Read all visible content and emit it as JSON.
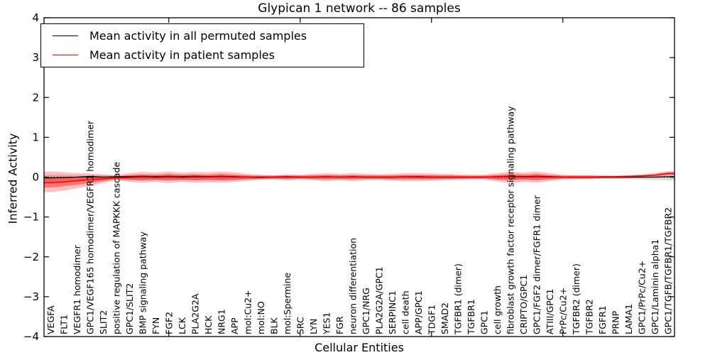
{
  "figure": {
    "background": "#ffffff"
  },
  "legend": {
    "items": [
      {
        "label": "Mean activity in all permuted samples",
        "color": "#000000"
      },
      {
        "label": "Mean activity in patient samples",
        "color": "#ff0000"
      }
    ]
  },
  "chart_data": {
    "type": "line",
    "title": "Glypican 1 network -- 86 samples",
    "xlabel": "Cellular Entities",
    "ylabel": "Inferred Activity",
    "ylim": [
      -4,
      4
    ],
    "yticks": [
      -4,
      -3,
      -2,
      -1,
      0,
      1,
      2,
      3,
      4
    ],
    "grid": false,
    "legend_position": "upper left",
    "major_tick_indices": [
      9,
      19,
      29,
      39
    ],
    "zero_line": {
      "y": 0,
      "style": "dotted",
      "color": "#000000"
    },
    "categories": [
      "VEGFA",
      "FLT1",
      "VEGFR1 homodimer",
      "GPC1/VEGF165 homodimer/VEGFR1 homodimer",
      "SLIT2",
      "positive regulation of MAPKKK cascade",
      "GPC1/SLIT2",
      "BMP signaling pathway",
      "FYN",
      "FGF2",
      "LCK",
      "PLA2G2A",
      "HCK",
      "NRG1",
      "APP",
      "mol:Cu2+",
      "mol:NO",
      "BLK",
      "mol:Spermine",
      "SRC",
      "LYN",
      "YES1",
      "FGR",
      "neuron differentiation",
      "GPC1/NRG",
      "PLA2G2A/GPC1",
      "SERPINC1",
      "cell death",
      "APP/GPC1",
      "TDGF1",
      "SMAD2",
      "TGFBR1 (dimer)",
      "TGFBR1",
      "GPC1",
      "cell growth",
      "fibroblast growth factor receptor signaling pathway",
      "CRIPTO/GPC1",
      "GPC1/FGF2 dimer/FGFR1 dimer",
      "ATIII/GPC1",
      "PrPc/Cu2+",
      "TGFBR2 (dimer)",
      "TGFBR2",
      "FGFR1",
      "PRNP",
      "LAMA1",
      "GPC1/PrPc/Cu2+",
      "GPC1/Laminin alpha1",
      "GPC1/TGFB/TGFBR1/TGFBR2"
    ],
    "series": [
      {
        "name": "Mean activity in all permuted samples",
        "color": "#000000",
        "width": 1.3,
        "values": [
          -0.02,
          -0.01,
          0.0,
          0.02,
          0.0,
          0.01,
          0.01,
          0.02,
          0.01,
          0.02,
          0.01,
          0.02,
          0.01,
          0.02,
          0.01,
          0.0,
          0.0,
          0.0,
          0.01,
          0.0,
          0.0,
          0.01,
          0.0,
          0.01,
          0.0,
          0.0,
          0.0,
          0.01,
          0.01,
          0.0,
          0.0,
          0.0,
          0.0,
          0.0,
          0.01,
          0.02,
          0.01,
          0.02,
          0.01,
          0.0,
          0.0,
          0.0,
          0.0,
          0.0,
          0.0,
          0.0,
          0.0,
          0.01
        ]
      },
      {
        "name": "Mean activity in patient samples",
        "color": "#ff0000",
        "width": 1.5,
        "values": [
          -0.14,
          -0.12,
          -0.09,
          -0.06,
          -0.04,
          -0.02,
          -0.01,
          0.0,
          -0.01,
          0.0,
          -0.01,
          0.0,
          0.0,
          0.01,
          0.0,
          0.0,
          -0.01,
          0.0,
          0.0,
          0.0,
          0.0,
          0.01,
          0.0,
          0.01,
          0.0,
          0.0,
          0.0,
          0.01,
          0.0,
          0.0,
          0.0,
          0.0,
          0.0,
          0.0,
          0.01,
          0.01,
          0.0,
          0.01,
          0.0,
          0.0,
          0.0,
          0.0,
          0.01,
          0.01,
          0.02,
          0.03,
          0.05,
          0.09
        ]
      }
    ],
    "bands": [
      {
        "name": "permuted-range",
        "color": "rgba(130,130,130,0.28)",
        "upper": [
          0.06,
          0.06,
          0.05,
          0.05,
          0.05,
          0.04,
          0.05,
          0.06,
          0.05,
          0.06,
          0.05,
          0.06,
          0.05,
          0.06,
          0.05,
          0.04,
          0.04,
          0.04,
          0.04,
          0.04,
          0.05,
          0.05,
          0.05,
          0.05,
          0.04,
          0.04,
          0.04,
          0.05,
          0.05,
          0.04,
          0.04,
          0.04,
          0.04,
          0.04,
          0.05,
          0.06,
          0.05,
          0.06,
          0.05,
          0.04,
          0.04,
          0.04,
          0.03,
          0.03,
          0.03,
          0.04,
          0.04,
          0.05
        ],
        "lower": [
          -0.12,
          -0.11,
          -0.1,
          -0.09,
          -0.08,
          -0.06,
          -0.07,
          -0.08,
          -0.07,
          -0.08,
          -0.07,
          -0.08,
          -0.07,
          -0.08,
          -0.07,
          -0.06,
          -0.05,
          -0.05,
          -0.06,
          -0.05,
          -0.06,
          -0.06,
          -0.06,
          -0.06,
          -0.05,
          -0.05,
          -0.06,
          -0.06,
          -0.06,
          -0.06,
          -0.05,
          -0.05,
          -0.05,
          -0.05,
          -0.06,
          -0.07,
          -0.06,
          -0.07,
          -0.06,
          -0.05,
          -0.05,
          -0.05,
          -0.04,
          -0.04,
          -0.05,
          -0.06,
          -0.07,
          -0.08
        ]
      },
      {
        "name": "patient-range-outer",
        "color": "rgba(255,0,0,0.25)",
        "upper": [
          0.14,
          0.12,
          0.1,
          0.09,
          0.07,
          0.05,
          0.1,
          0.13,
          0.11,
          0.14,
          0.11,
          0.13,
          0.12,
          0.14,
          0.12,
          0.08,
          0.06,
          0.05,
          0.07,
          0.06,
          0.08,
          0.1,
          0.08,
          0.1,
          0.08,
          0.07,
          0.08,
          0.1,
          0.1,
          0.09,
          0.08,
          0.07,
          0.06,
          0.06,
          0.1,
          0.14,
          0.11,
          0.14,
          0.1,
          0.06,
          0.05,
          0.05,
          0.04,
          0.04,
          0.05,
          0.07,
          0.1,
          0.15
        ],
        "lower": [
          -0.38,
          -0.34,
          -0.28,
          -0.22,
          -0.15,
          -0.08,
          -0.12,
          -0.14,
          -0.12,
          -0.15,
          -0.12,
          -0.14,
          -0.13,
          -0.14,
          -0.12,
          -0.09,
          -0.07,
          -0.06,
          -0.08,
          -0.06,
          -0.08,
          -0.1,
          -0.08,
          -0.1,
          -0.08,
          -0.07,
          -0.09,
          -0.1,
          -0.1,
          -0.09,
          -0.08,
          -0.07,
          -0.06,
          -0.06,
          -0.11,
          -0.15,
          -0.12,
          -0.14,
          -0.1,
          -0.06,
          -0.05,
          -0.05,
          -0.04,
          -0.04,
          -0.03,
          -0.02,
          0.0,
          0.03
        ]
      },
      {
        "name": "patient-range-inner",
        "color": "rgba(255,0,0,0.40)",
        "upper": [
          0.0,
          0.0,
          0.01,
          0.02,
          0.02,
          0.02,
          0.05,
          0.07,
          0.06,
          0.08,
          0.06,
          0.07,
          0.06,
          0.08,
          0.06,
          0.04,
          0.03,
          0.03,
          0.04,
          0.03,
          0.04,
          0.05,
          0.04,
          0.05,
          0.04,
          0.04,
          0.04,
          0.05,
          0.05,
          0.05,
          0.04,
          0.04,
          0.03,
          0.03,
          0.05,
          0.08,
          0.06,
          0.08,
          0.05,
          0.03,
          0.03,
          0.03,
          0.02,
          0.02,
          0.03,
          0.05,
          0.07,
          0.12
        ],
        "lower": [
          -0.26,
          -0.23,
          -0.19,
          -0.15,
          -0.1,
          -0.05,
          -0.07,
          -0.08,
          -0.07,
          -0.08,
          -0.07,
          -0.08,
          -0.07,
          -0.08,
          -0.07,
          -0.05,
          -0.04,
          -0.03,
          -0.04,
          -0.03,
          -0.04,
          -0.05,
          -0.04,
          -0.05,
          -0.04,
          -0.04,
          -0.05,
          -0.05,
          -0.05,
          -0.05,
          -0.04,
          -0.04,
          -0.03,
          -0.03,
          -0.06,
          -0.08,
          -0.06,
          -0.08,
          -0.05,
          -0.03,
          -0.03,
          -0.03,
          -0.02,
          -0.02,
          -0.01,
          0.01,
          0.03,
          0.06
        ]
      }
    ]
  }
}
